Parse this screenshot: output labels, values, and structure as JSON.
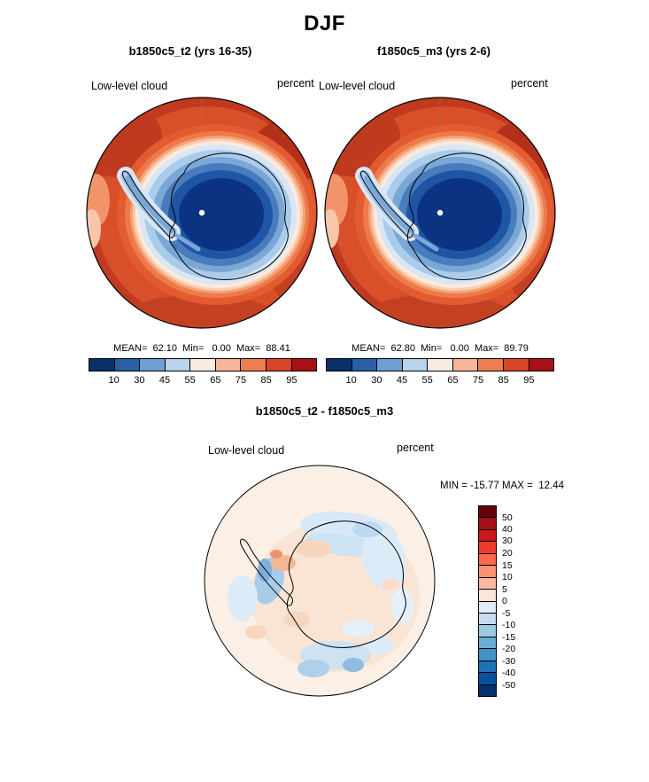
{
  "figure": {
    "title": "DJF"
  },
  "panels": [
    {
      "title": "b1850c5_t2 (yrs 16-35)",
      "variable": "Low-level cloud",
      "units": "percent",
      "stats_text": "MEAN=  62.10  Min=   0.00  Max=  88.41"
    },
    {
      "title": "f1850c5_m3 (yrs 2-6)",
      "variable": "Low-level cloud",
      "units": "percent",
      "stats_text": "MEAN=  62.80  Min=   0.00  Max=  89.79"
    }
  ],
  "diff_panel": {
    "title": "b1850c5_t2 - f1850c5_m3",
    "variable": "Low-level cloud",
    "units": "percent",
    "stats_text": "MIN = -15.77 MAX =  12.44"
  },
  "colorbar": {
    "ticks": [
      "10",
      "30",
      "45",
      "55",
      "65",
      "75",
      "85",
      "95"
    ],
    "colors": [
      "#08306b",
      "#2a5fa5",
      "#6f9fd2",
      "#b8d3ea",
      "#f8ece2",
      "#f7b698",
      "#ee7e4f",
      "#d8432a",
      "#a81016"
    ]
  },
  "diff_colorbar": {
    "ticks": [
      "50",
      "40",
      "30",
      "20",
      "15",
      "10",
      "5",
      "0",
      "-5",
      "-10",
      "-15",
      "-20",
      "-30",
      "-40",
      "-50"
    ],
    "colors": [
      "#67000d",
      "#a50f15",
      "#cb181d",
      "#ef3b2c",
      "#fb6a4a",
      "#fc9272",
      "#fcbba1",
      "#fee5d9",
      "#e1edf8",
      "#c6dbef",
      "#9ecae1",
      "#6baed6",
      "#4292c6",
      "#2171b5",
      "#08519c",
      "#08306b"
    ]
  },
  "chart_data": [
    {
      "type": "heatmap",
      "title": "b1850c5_t2 (yrs 16-35)",
      "season": "DJF",
      "variable": "Low-level cloud",
      "units": "percent",
      "projection": "south-polar map (Antarctica)",
      "stats": {
        "mean": 62.1,
        "min": 0.0,
        "max": 88.41
      },
      "contour_levels": [
        10,
        30,
        45,
        55,
        65,
        75,
        85,
        95
      ],
      "palette": [
        "#08306b",
        "#2a5fa5",
        "#6f9fd2",
        "#b8d3ea",
        "#f8ece2",
        "#f7b698",
        "#ee7e4f",
        "#d8432a",
        "#a81016"
      ],
      "legend_position": "below"
    },
    {
      "type": "heatmap",
      "title": "f1850c5_m3 (yrs 2-6)",
      "season": "DJF",
      "variable": "Low-level cloud",
      "units": "percent",
      "projection": "south-polar map (Antarctica)",
      "stats": {
        "mean": 62.8,
        "min": 0.0,
        "max": 89.79
      },
      "contour_levels": [
        10,
        30,
        45,
        55,
        65,
        75,
        85,
        95
      ],
      "palette": [
        "#08306b",
        "#2a5fa5",
        "#6f9fd2",
        "#b8d3ea",
        "#f8ece2",
        "#f7b698",
        "#ee7e4f",
        "#d8432a",
        "#a81016"
      ],
      "legend_position": "below"
    },
    {
      "type": "heatmap",
      "title": "b1850c5_t2 - f1850c5_m3",
      "season": "DJF",
      "variable": "Low-level cloud",
      "units": "percent",
      "projection": "south-polar map (Antarctica)",
      "stats": {
        "min": -15.77,
        "max": 12.44
      },
      "contour_levels": [
        -50,
        -40,
        -30,
        -20,
        -15,
        -10,
        -5,
        0,
        5,
        10,
        15,
        20,
        30,
        40,
        50
      ],
      "palette": [
        "#08306b",
        "#08519c",
        "#2171b5",
        "#4292c6",
        "#6baed6",
        "#9ecae1",
        "#c6dbef",
        "#e1edf8",
        "#fee5d9",
        "#fcbba1",
        "#fc9272",
        "#fb6a4a",
        "#ef3b2c",
        "#cb181d",
        "#a50f15",
        "#67000d"
      ],
      "legend_position": "right-vertical"
    }
  ]
}
